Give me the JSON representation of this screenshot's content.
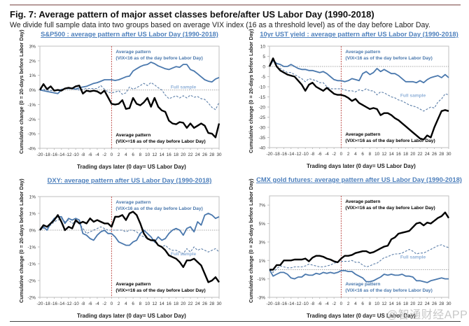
{
  "figure": {
    "title": "Fig. 7: Average pattern of major asset classes before/after US Labor Day (1990-2018)",
    "subtitle": "We divide full sample data into two groups based on average VIX index (16 as a threshold level) as of the day before Labor Day.",
    "watermark": "@智通财经APP"
  },
  "colors": {
    "low_vix": "#4a78ad",
    "high_vix": "#000000",
    "full_sample": "#5b7ea8",
    "full_sample_label": "#8fb0d8",
    "labor_day_line": "#c0504d",
    "title": "#4f81bd",
    "axis": "#bfbfbf"
  },
  "chart_data": [
    {
      "id": "sp500",
      "type": "line",
      "title": "S&P500 : average pattern after US Labor Day (1990-2018)",
      "xlabel": "Trading days later (0 day= US Labor Day)",
      "ylabel": "Cumulative change (0 = 20-days before Labor Day)",
      "x_range": [
        -20,
        30
      ],
      "x_ticks": [
        -20,
        -18,
        -16,
        -14,
        -12,
        -10,
        -8,
        -6,
        -4,
        -2,
        0,
        2,
        4,
        6,
        8,
        10,
        12,
        14,
        16,
        18,
        20,
        22,
        24,
        26,
        28,
        30
      ],
      "ylim": [
        -4,
        3
      ],
      "y_ticks": [
        3,
        2,
        1,
        0,
        -1,
        -2,
        -3,
        -4
      ],
      "y_tick_labels": [
        "3%",
        "2%",
        "1%",
        "0%",
        "-1%",
        "-2%",
        "-3%",
        "-4%"
      ],
      "labor_day_x": 0,
      "annotations": [
        {
          "text": "Average pattern",
          "text2": "(VIX<16 as of the day before Labor Day)",
          "series": "low_vix",
          "pos": "top-center"
        },
        {
          "text": "Full sample",
          "series": "full_sample",
          "pos": "center-right"
        },
        {
          "text": "Average pattern",
          "text2": "(VIX>=16 as of the day before Labor Day)",
          "series": "high_vix",
          "pos": "bottom-center"
        }
      ],
      "series": [
        {
          "name": "Average pattern (VIX<16)",
          "key": "low_vix",
          "style": "solid",
          "values": [
            0,
            -0.05,
            -0.1,
            -0.15,
            -0.2,
            -0.25,
            0,
            0.1,
            0.1,
            0.1,
            0.05,
            0.15,
            0.2,
            0.25,
            0.35,
            0.45,
            0.5,
            0.6,
            0.7,
            0.7,
            0.7,
            0.65,
            0.7,
            0.8,
            0.9,
            0.95,
            1.3,
            1.45,
            1.6,
            1.7,
            1.75,
            1.9,
            1.8,
            1.65,
            1.55,
            1.45,
            1.4,
            1.5,
            1.6,
            1.55,
            1.75,
            1.75,
            1.4,
            1.3,
            1.1,
            0.9,
            0.7,
            0.6,
            0.55,
            0.75,
            0.85
          ]
        },
        {
          "name": "Full sample",
          "key": "full_sample",
          "style": "dashed",
          "values": [
            0,
            0.05,
            0,
            -0.05,
            -0.05,
            0,
            0.05,
            0.1,
            0.1,
            0.15,
            0.05,
            0,
            0.05,
            0.1,
            0.1,
            0.1,
            0.1,
            0.3,
            0.05,
            -0.15,
            -0.2,
            -0.15,
            -0.05,
            -0.3,
            -0.2,
            0.2,
            0.05,
            0.15,
            0.3,
            0.45,
            0.3,
            0.5,
            0.35,
            0.15,
            0,
            -0.35,
            -0.6,
            -0.5,
            -0.4,
            -0.55,
            -0.4,
            -0.55,
            -0.35,
            -0.5,
            -0.45,
            -0.6,
            -0.65,
            -0.9,
            -1.2,
            -1.35,
            -0.85
          ]
        },
        {
          "name": "Average pattern (VIX>=16)",
          "key": "high_vix",
          "style": "solid",
          "values": [
            0,
            0.4,
            0.05,
            0.25,
            -0.05,
            0,
            -0.05,
            0.1,
            0.15,
            0.1,
            0.25,
            0.3,
            -0.25,
            -0.05,
            -0.1,
            -0.05,
            -0.1,
            -0.25,
            -0.05,
            -0.5,
            -0.95,
            -1.0,
            -0.95,
            -0.7,
            -1.3,
            -1.25,
            -0.55,
            -0.95,
            -1.05,
            -0.85,
            -0.55,
            -1.15,
            -0.55,
            -1.15,
            -1.4,
            -1.5,
            -2.1,
            -2.3,
            -2.35,
            -2.2,
            -2.25,
            -2.6,
            -2.3,
            -2.6,
            -2.45,
            -2.3,
            -2.45,
            -2.95,
            -3.0,
            -3.25,
            -2.3
          ]
        }
      ]
    },
    {
      "id": "ust10y",
      "type": "line",
      "title": "10yr UST yield : average pattern after US Labor Day (1990-2018)",
      "xlabel": "Trading days later (0 day= US Labor Day)",
      "ylabel": "Cumulative change (0 = 20-days before Labor Day)",
      "x_range": [
        -20,
        30
      ],
      "x_ticks": [
        -20,
        -18,
        -16,
        -14,
        -12,
        -10,
        -8,
        -6,
        -4,
        -2,
        0,
        2,
        4,
        6,
        8,
        10,
        12,
        14,
        16,
        18,
        20,
        22,
        24,
        26,
        28,
        30
      ],
      "ylim": [
        -40,
        10
      ],
      "y_ticks": [
        10,
        5,
        0,
        -5,
        -10,
        -15,
        -20,
        -25,
        -30,
        -35,
        -40
      ],
      "y_tick_labels": [
        "10",
        "5",
        "0",
        "-5",
        "-10",
        "-15",
        "-20",
        "-25",
        "-30",
        "-35",
        "-40"
      ],
      "labor_day_x": 0,
      "annotations": [
        {
          "text": "Average pattern",
          "text2": "(VIX<16 as of the day before Labor Day)",
          "series": "low_vix",
          "pos": "top-center"
        },
        {
          "text": "Full sample",
          "series": "full_sample",
          "pos": "center-right"
        },
        {
          "text": "Average pattern",
          "text2": "(VIX>=16 as of the day before Labor Day)",
          "series": "high_vix",
          "pos": "bottom-center"
        }
      ],
      "series": [
        {
          "name": "Average pattern (VIX<16)",
          "key": "low_vix",
          "style": "solid",
          "values": [
            0,
            3,
            1.5,
            1,
            0,
            0,
            1,
            0,
            -1,
            -1.5,
            -1.5,
            -2,
            -2,
            -2.5,
            -3,
            -2.5,
            -3.5,
            -5,
            -6.5,
            -7,
            -7,
            -7.5,
            -7,
            -6,
            -6.5,
            -7,
            -3.5,
            -2.5,
            -4,
            -3,
            -1,
            -2.5,
            -1.5,
            -2.5,
            -3.5,
            -3.5,
            -4.5,
            -6,
            -7.5,
            -7.5,
            -7.5,
            -8,
            -7,
            -8,
            -6.5,
            -5.5,
            -5,
            -4.5,
            -5.5,
            -4,
            -5.5
          ]
        },
        {
          "name": "Full sample",
          "key": "full_sample",
          "style": "dashed",
          "values": [
            0,
            3,
            0,
            -1,
            -2,
            -3,
            -3,
            -4,
            -5,
            -6,
            -7.5,
            -6,
            -6.5,
            -7,
            -8,
            -8,
            -10,
            -11,
            -11,
            -11,
            -11,
            -11.5,
            -12,
            -12,
            -12.5,
            -11.5,
            -12,
            -11,
            -12,
            -12,
            -14,
            -12.5,
            -13,
            -14,
            -15,
            -15.5,
            -16.5,
            -17,
            -18,
            -19,
            -19.5,
            -20,
            -21,
            -22,
            -21,
            -20,
            -20.5,
            -17.5,
            -16,
            -13.5,
            -14
          ]
        },
        {
          "name": "Average pattern (VIX>=16)",
          "key": "high_vix",
          "style": "solid",
          "values": [
            0,
            4,
            0,
            -2,
            -3,
            -4,
            -4.5,
            -5,
            -7,
            -9,
            -12,
            -9,
            -8,
            -10,
            -11,
            -12,
            -10.5,
            -12,
            -13.5,
            -14,
            -14,
            -14.5,
            -15.5,
            -17,
            -16,
            -18,
            -19,
            -20,
            -21,
            -20.5,
            -21,
            -24,
            -23,
            -23,
            -24,
            -25.5,
            -26.5,
            -28,
            -29.5,
            -31,
            -32.5,
            -34,
            -35.5,
            -36,
            -34,
            -35,
            -30,
            -26,
            -22,
            -21.5,
            -22
          ]
        }
      ]
    },
    {
      "id": "dxy",
      "type": "line",
      "title": "DXY: average pattern after US Labor Day (1990-2018)",
      "xlabel": "Trading days later (0 day= US Labor Day)",
      "ylabel": "Cumulative change (0 = 20-days before Labor Day)",
      "x_range": [
        -20,
        30
      ],
      "x_ticks": [
        -20,
        -18,
        -16,
        -14,
        -12,
        -10,
        -8,
        -6,
        -4,
        -2,
        0,
        2,
        4,
        6,
        8,
        10,
        12,
        14,
        16,
        18,
        20,
        22,
        24,
        26,
        28,
        30
      ],
      "ylim": [
        -2,
        1
      ],
      "y_ticks": [
        1,
        0.5,
        0,
        -0.5,
        -1,
        -1.5,
        -2
      ],
      "y_tick_labels": [
        "1%",
        "1%",
        "0%",
        "-1%",
        "-1%",
        "-2%",
        "-2%"
      ],
      "labor_day_x": 0,
      "annotations": [
        {
          "text": "Average pattern",
          "text2": "(VIX<16 as of the day before Labor Day)",
          "series": "low_vix",
          "pos": "top-center"
        },
        {
          "text": "Full sample",
          "series": "full_sample",
          "pos": "center-right"
        },
        {
          "text": "Average pattern",
          "text2": "(VIX>=16 as of the day before Labor Day)",
          "series": "high_vix",
          "pos": "bottom-center"
        }
      ],
      "series": [
        {
          "name": "Average pattern (VIX<16)",
          "key": "low_vix",
          "style": "solid",
          "values": [
            0,
            0.1,
            0,
            0.2,
            0.35,
            0.4,
            0.4,
            0.2,
            0.35,
            0.3,
            0.35,
            0.3,
            -0.1,
            -0.15,
            -0.25,
            -0.3,
            -0.15,
            -0.05,
            0,
            -0.1,
            -0.1,
            -0.2,
            -0.35,
            -0.4,
            -0.45,
            -0.45,
            -0.35,
            -0.3,
            -0.1,
            0,
            -0.1,
            -0.2,
            -0.35,
            -0.2,
            -0.3,
            -0.25,
            -0.1,
            0,
            0.05,
            0,
            -0.15,
            0.05,
            0.1,
            -0.05,
            0.25,
            0.15,
            0.45,
            0.5,
            0.45,
            0.35,
            0.4
          ]
        },
        {
          "name": "Full sample",
          "key": "full_sample",
          "style": "dashed",
          "values": [
            0,
            0.05,
            0.1,
            0.15,
            0.25,
            0.3,
            0.35,
            0.25,
            0.3,
            0.2,
            0.25,
            0.2,
            0.05,
            -0.1,
            -0.05,
            0,
            0.05,
            0.1,
            0.05,
            0,
            0,
            0,
            0,
            0,
            -0.05,
            0,
            0,
            -0.05,
            -0.15,
            -0.2,
            -0.25,
            -0.3,
            -0.35,
            -0.45,
            -0.5,
            -0.45,
            -0.55,
            -0.6,
            -0.6,
            -0.65,
            -0.7,
            -0.55,
            -0.65,
            -0.5,
            -0.6,
            -0.55,
            -0.6,
            -0.65,
            -0.6,
            -0.55,
            -0.65
          ]
        },
        {
          "name": "Average pattern (VIX>=16)",
          "key": "high_vix",
          "style": "solid",
          "values": [
            0,
            0.15,
            0.1,
            0.2,
            0.3,
            0.45,
            0.25,
            0,
            0.1,
            0.05,
            0.3,
            0.2,
            0.25,
            0.2,
            0.35,
            0.25,
            0.3,
            0.25,
            0.2,
            0.2,
            0.1,
            0.4,
            0.4,
            0.45,
            0.3,
            0.5,
            0.55,
            0.45,
            0.2,
            -0.1,
            -0.25,
            -0.3,
            -0.3,
            -0.45,
            -0.5,
            -0.6,
            -0.75,
            -0.8,
            -0.85,
            -0.95,
            -1.1,
            -0.9,
            -0.9,
            -0.85,
            -0.95,
            -1.05,
            -1.3,
            -1.55,
            -1.5,
            -1.4,
            -1.55
          ]
        }
      ]
    },
    {
      "id": "gold",
      "type": "line",
      "title": "CMX gold futures: average pattern after US Labor Day (1990-2018)",
      "xlabel": "Trading days later (0 day= US Labor Day)",
      "ylabel": "Cumulative change (0 = 20-days before Labor Day)",
      "x_range": [
        -20,
        30
      ],
      "x_ticks": [
        -20,
        -18,
        -16,
        -14,
        -12,
        -10,
        -8,
        -6,
        -4,
        -2,
        0,
        2,
        4,
        6,
        8,
        10,
        12,
        14,
        16,
        18,
        20,
        22,
        24,
        26,
        28,
        30
      ],
      "ylim": [
        -3,
        8
      ],
      "y_ticks": [
        7,
        5,
        3,
        1,
        -1,
        -3
      ],
      "y_tick_labels": [
        "7%",
        "5%",
        "3%",
        "1%",
        "-1%",
        "-3%"
      ],
      "labor_day_x": 0,
      "annotations": [
        {
          "text": "Average pattern",
          "text2": "(VIX>=16 as of the day before Labor Day)",
          "series": "high_vix",
          "pos": "top-center"
        },
        {
          "text": "Full sample",
          "series": "full_sample",
          "pos": "center-right"
        },
        {
          "text": "Average pattern",
          "text2": "(VIX<16 as of the day before Labor Day)",
          "series": "low_vix",
          "pos": "bottom-center"
        }
      ],
      "series": [
        {
          "name": "Average pattern (VIX<16)",
          "key": "low_vix",
          "style": "solid",
          "values": [
            0,
            -0.7,
            -0.5,
            -0.3,
            -0.3,
            -0.5,
            -0.9,
            -1.0,
            -0.8,
            -0.8,
            -0.5,
            -0.6,
            -0.6,
            -0.4,
            -0.5,
            -0.3,
            -0.4,
            -0.3,
            -0.4,
            -0.3,
            -0.1,
            -0.1,
            -0.2,
            -0.2,
            -0.5,
            -0.7,
            -0.9,
            -1.3,
            -1.3,
            -1.2,
            -1.0,
            -0.8,
            -0.5,
            -0.6,
            -0.5,
            -0.6,
            -0.6,
            -0.5,
            -0.7,
            -0.7,
            -0.8,
            -1.2,
            -1.2,
            -1.3,
            -1.4,
            -1.2,
            -1.1,
            -1.0,
            -0.9,
            -1.0,
            -1.0
          ]
        },
        {
          "name": "Full sample",
          "key": "full_sample",
          "style": "dashed",
          "values": [
            0,
            -0.3,
            0.1,
            0.4,
            0.3,
            0.2,
            0.2,
            0.3,
            0.3,
            0.3,
            0.4,
            0.6,
            0.5,
            0.4,
            0.3,
            0.3,
            0.4,
            0.5,
            0.7,
            0.8,
            0.9,
            0.9,
            0.9,
            1.0,
            0.8,
            0.8,
            0.5,
            0.3,
            0.4,
            0.6,
            0.7,
            1.0,
            1.3,
            1.4,
            1.6,
            1.7,
            1.7,
            1.8,
            2.0,
            2.2,
            2.0,
            1.7,
            1.8,
            1.8,
            2.0,
            2.2,
            2.4,
            2.6,
            2.7,
            2.5,
            2.4
          ]
        },
        {
          "name": "Average pattern (VIX>=16)",
          "key": "high_vix",
          "style": "solid",
          "values": [
            0,
            0,
            0.5,
            0.5,
            1.0,
            1.0,
            1.0,
            1.1,
            1.1,
            1.1,
            1.2,
            0.9,
            1.3,
            1.5,
            1.5,
            1.4,
            1.2,
            1.1,
            0.9,
            0.8,
            1.2,
            1.5,
            1.5,
            1.6,
            1.8,
            1.9,
            2.0,
            2.0,
            1.8,
            1.9,
            2.1,
            2.3,
            2.5,
            2.6,
            3.3,
            3.5,
            3.9,
            4.0,
            4.1,
            4.2,
            4.6,
            5.0,
            5.1,
            4.8,
            5.1,
            5.0,
            5.3,
            5.6,
            5.8,
            6.2,
            5.6
          ]
        }
      ]
    }
  ]
}
